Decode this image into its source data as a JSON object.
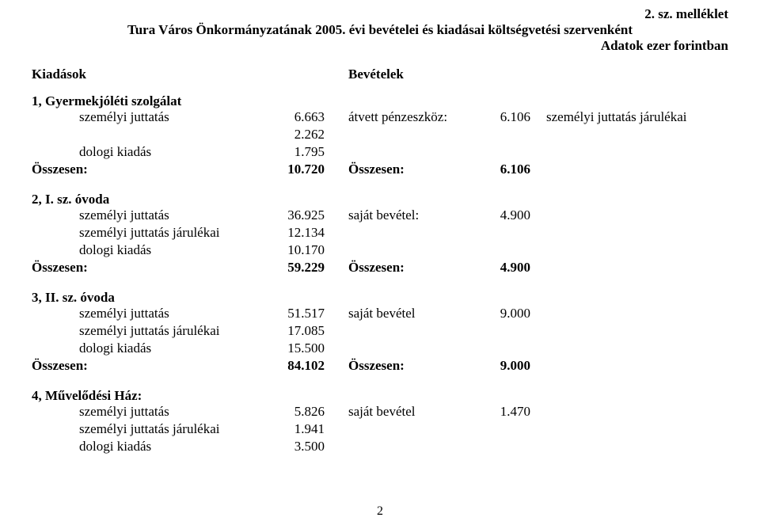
{
  "header": {
    "attachment": "2. sz. melléklet",
    "title": "Tura Város Önkormányzatának 2005. évi bevételei és kiadásai költségvetési szervenként",
    "unit": "Adatok ezer forintban"
  },
  "colHeaders": {
    "left": "Kiadások",
    "right": "Bevételek"
  },
  "sections": [
    {
      "title": "1, Gyermekjóléti szolgálat",
      "rows": [
        {
          "label": "személyi juttatás",
          "num1": "6.663",
          "label2": "átvett pénzeszköz:",
          "num2": "6.106",
          "label3": "személyi juttatás járulékai"
        },
        {
          "label": "",
          "num1": "2.262",
          "label2": "",
          "num2": "",
          "label3": ""
        },
        {
          "label": "dologi kiadás",
          "num1": "1.795",
          "label2": "",
          "num2": "",
          "label3": ""
        }
      ],
      "total": {
        "label": "Összesen:",
        "num1": "10.720",
        "label2": "Összesen:",
        "num2": "6.106",
        "label3": ""
      }
    },
    {
      "title": "2, I. sz. óvoda",
      "rows": [
        {
          "label": "személyi juttatás",
          "num1": "36.925",
          "label2": "saját bevétel:",
          "num2": "4.900",
          "label3": ""
        },
        {
          "label": "személyi juttatás járulékai",
          "num1": "12.134",
          "label2": "",
          "num2": "",
          "label3": ""
        },
        {
          "label": "dologi kiadás",
          "num1": "10.170",
          "label2": "",
          "num2": "",
          "label3": ""
        }
      ],
      "total": {
        "label": "Összesen:",
        "num1": "59.229",
        "label2": "Összesen:",
        "num2": "4.900",
        "label3": ""
      }
    },
    {
      "title": "3, II. sz. óvoda",
      "rows": [
        {
          "label": "személyi juttatás",
          "num1": "51.517",
          "label2": "saját bevétel",
          "num2": "9.000",
          "label3": ""
        },
        {
          "label": "személyi juttatás járulékai",
          "num1": "17.085",
          "label2": "",
          "num2": "",
          "label3": ""
        },
        {
          "label": "dologi kiadás",
          "num1": "15.500",
          "label2": "",
          "num2": "",
          "label3": ""
        }
      ],
      "total": {
        "label": "Összesen:",
        "num1": "84.102",
        "label2": "Összesen:",
        "num2": "9.000",
        "label3": ""
      }
    },
    {
      "title": "4, Művelődési Ház:",
      "rows": [
        {
          "label": "személyi juttatás",
          "num1": "5.826",
          "label2": "saját bevétel",
          "num2": "1.470",
          "label3": ""
        },
        {
          "label": "személyi juttatás járulékai",
          "num1": "1.941",
          "label2": "",
          "num2": "",
          "label3": ""
        },
        {
          "label": "dologi kiadás",
          "num1": "3.500",
          "label2": "",
          "num2": "",
          "label3": ""
        }
      ],
      "total": null
    }
  ],
  "pageNumber": "2",
  "style": {
    "fontSizeBody": 17,
    "fontSizeSmall": 16,
    "textColor": "#000000",
    "bgColor": "#ffffff"
  }
}
